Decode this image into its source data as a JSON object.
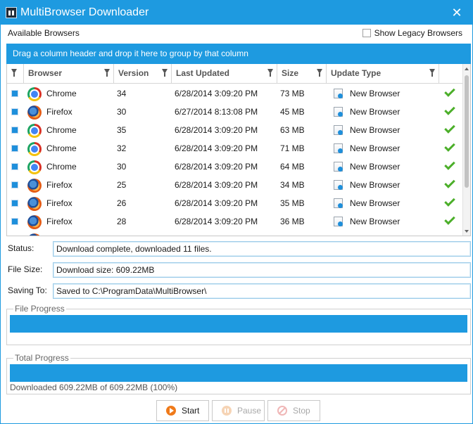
{
  "window": {
    "title": "MultiBrowser Downloader",
    "icon": "app-icon",
    "close": "✕"
  },
  "header": {
    "available_label": "Available Browsers",
    "legacy_label": "Show Legacy Browsers"
  },
  "grid": {
    "group_hint": "Drag a column header and drop it here to group by that column",
    "columns": [
      "Browser",
      "Version",
      "Last Updated",
      "Size",
      "Update Type"
    ],
    "rows": [
      {
        "browser": "Chrome",
        "icon": "chrome-icon",
        "version": "34",
        "updated": "6/28/2014 3:09:20 PM",
        "size": "73 MB",
        "type": "New Browser"
      },
      {
        "browser": "Firefox",
        "icon": "firefox-icon",
        "version": "30",
        "updated": "6/27/2014 8:13:08 PM",
        "size": "45 MB",
        "type": "New Browser"
      },
      {
        "browser": "Chrome",
        "icon": "chrome-icon",
        "version": "35",
        "updated": "6/28/2014 3:09:20 PM",
        "size": "63 MB",
        "type": "New Browser"
      },
      {
        "browser": "Chrome",
        "icon": "chrome-icon",
        "version": "32",
        "updated": "6/28/2014 3:09:20 PM",
        "size": "71 MB",
        "type": "New Browser"
      },
      {
        "browser": "Chrome",
        "icon": "chrome-icon",
        "version": "30",
        "updated": "6/28/2014 3:09:20 PM",
        "size": "64 MB",
        "type": "New Browser"
      },
      {
        "browser": "Firefox",
        "icon": "firefox-icon",
        "version": "25",
        "updated": "6/28/2014 3:09:20 PM",
        "size": "34 MB",
        "type": "New Browser"
      },
      {
        "browser": "Firefox",
        "icon": "firefox-icon",
        "version": "26",
        "updated": "6/28/2014 3:09:20 PM",
        "size": "35 MB",
        "type": "New Browser"
      },
      {
        "browser": "Firefox",
        "icon": "firefox-icon",
        "version": "28",
        "updated": "6/28/2014 3:09:20 PM",
        "size": "36 MB",
        "type": "New Browser"
      },
      {
        "browser": "",
        "icon": "firefox-icon",
        "version": "",
        "updated": "",
        "size": "",
        "type": ""
      }
    ]
  },
  "fields": {
    "status_label": "Status:",
    "status_value": "Download complete, downloaded 11 files.",
    "filesize_label": "File Size:",
    "filesize_value": "Download size: 609.22MB",
    "saving_label": "Saving To:",
    "saving_value": "Saved to C:\\ProgramData\\MultiBrowser\\"
  },
  "progress": {
    "file_title": "File Progress",
    "file_percent": 100,
    "total_title": "Total Progress",
    "total_percent": 100,
    "total_text": "Downloaded 609.22MB of 609.22MB (100%)"
  },
  "buttons": {
    "start": "Start",
    "pause": "Pause",
    "stop": "Stop"
  },
  "colors": {
    "accent": "#1e9ae0",
    "check_green": "#4caf2a"
  }
}
